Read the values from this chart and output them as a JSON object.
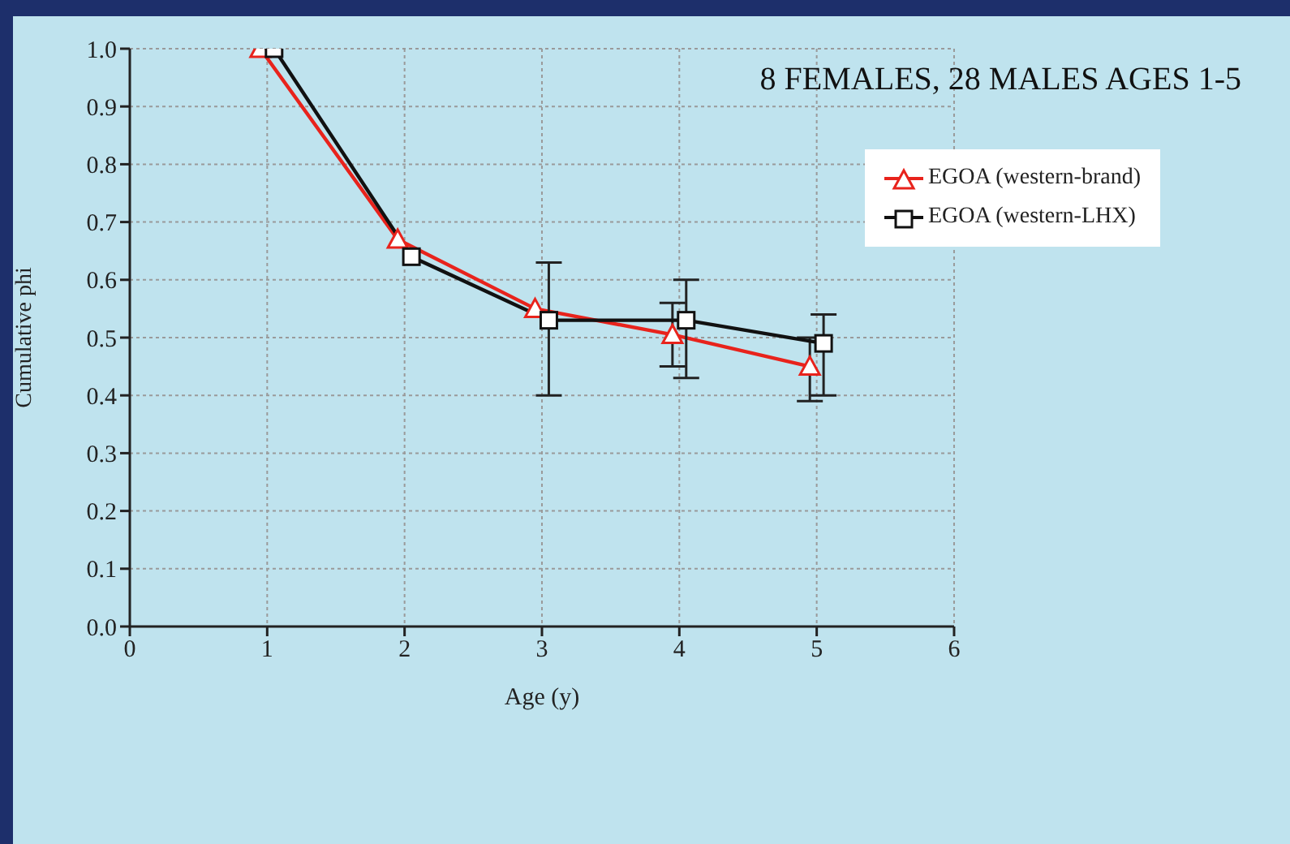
{
  "chart_data": {
    "type": "line",
    "title": "8 FEMALES, 28 MALES AGES 1-5",
    "xlabel": "Age (y)",
    "ylabel": "Cumulative phi",
    "xlim": [
      0,
      6
    ],
    "xticks": [
      0,
      1,
      2,
      3,
      4,
      5,
      6
    ],
    "ylim": [
      0,
      1
    ],
    "yticks": [
      {
        "value": 0,
        "label": "0.0"
      },
      {
        "value": 0.1,
        "label": "0.1"
      },
      {
        "value": 0.2,
        "label": "0.2"
      },
      {
        "value": 0.3,
        "label": "0.3"
      },
      {
        "value": 0.4,
        "label": "0.4"
      },
      {
        "value": 0.5,
        "label": "0.5"
      },
      {
        "value": 0.6,
        "label": "0.6"
      },
      {
        "value": 0.7,
        "label": "0.7"
      },
      {
        "value": 0.8,
        "label": "0.8"
      },
      {
        "value": 0.9,
        "label": "0.9"
      },
      {
        "value": 1,
        "label": "1.0"
      }
    ],
    "grid": true,
    "legend": "top right",
    "line_style": "solid",
    "series": [
      {
        "name": "EGOA (western-brand)",
        "color": "#e8231c",
        "marker": "triangle",
        "x": [
          0.95,
          1.95,
          2.95,
          3.95,
          4.95
        ],
        "values": [
          1.0,
          0.67,
          0.55,
          0.505,
          0.45
        ],
        "errors": [
          null,
          null,
          null,
          [
            0.45,
            0.56
          ],
          [
            0.39,
            0.5
          ]
        ]
      },
      {
        "name": "EGOA (western-LHX)",
        "color": "#111111",
        "marker": "square",
        "x": [
          1.05,
          2.05,
          3.05,
          4.05,
          5.05
        ],
        "values": [
          1.0,
          0.64,
          0.53,
          0.53,
          0.49
        ],
        "errors": [
          null,
          null,
          [
            0.4,
            0.63
          ],
          [
            0.43,
            0.6
          ],
          [
            0.4,
            0.54
          ]
        ]
      }
    ]
  }
}
